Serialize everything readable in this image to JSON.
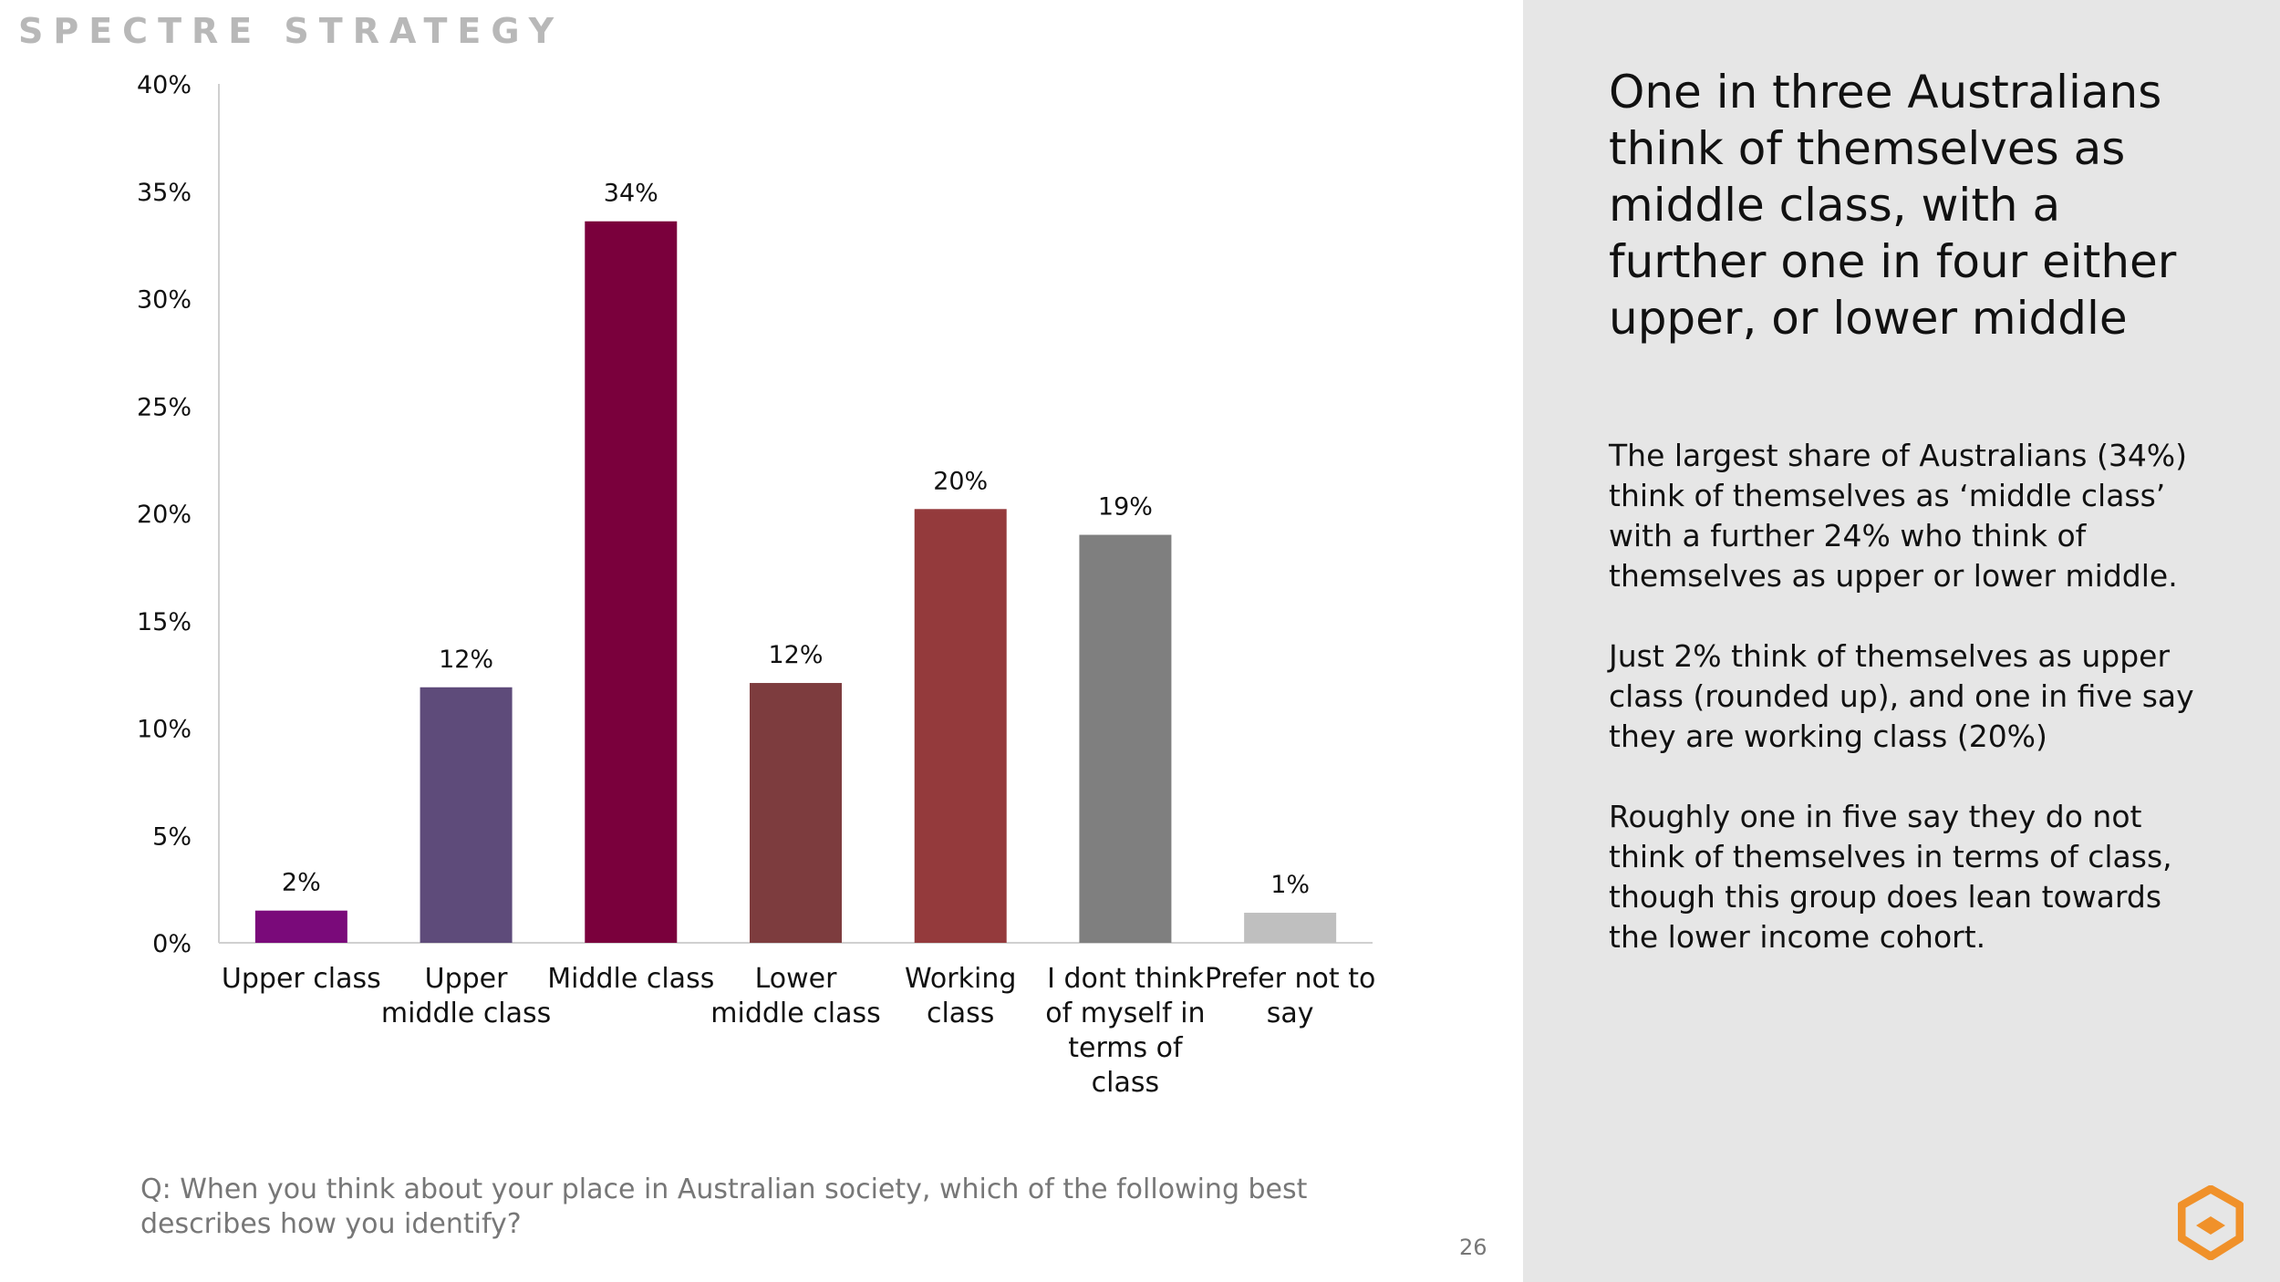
{
  "brand": "SPECTRE STRATEGY",
  "headline": "One in three Australians think of themselves as middle class, with a further one in four either upper, or lower middle",
  "body": [
    "The largest share of Australians (34%) think of themselves as ‘middle class’ with a further 24% who think of themselves as upper or lower middle.",
    "Just 2% think of themselves as upper class (rounded up), and one in five say they are working class (20%)",
    "Roughly one in five say they do not think of themselves in terms of class, though this group does lean towards the lower income cohort."
  ],
  "question": "Q: When you think about your place in Australian society, which of the following best describes how you identify?",
  "page_number": "26",
  "chart_data": {
    "type": "bar",
    "categories": [
      [
        "Upper class"
      ],
      [
        "Upper",
        "middle class"
      ],
      [
        "Middle class"
      ],
      [
        "Lower",
        "middle class"
      ],
      [
        "Working",
        "class"
      ],
      [
        "I dont think",
        "of myself in",
        "terms of",
        "class"
      ],
      [
        "Prefer not to",
        "say"
      ]
    ],
    "values": [
      1.5,
      11.9,
      33.6,
      12.1,
      20.2,
      19.0,
      1.4
    ],
    "data_labels": [
      "2%",
      "12%",
      "34%",
      "12%",
      "20%",
      "19%",
      "1%"
    ],
    "colors": [
      "#7a0a7a",
      "#5e4b7a",
      "#7a003c",
      "#7d3c3e",
      "#943a3c",
      "#7f7f7f",
      "#bfbfbf"
    ],
    "ylim": [
      0,
      40
    ],
    "yticks": [
      0,
      5,
      10,
      15,
      20,
      25,
      30,
      35,
      40
    ],
    "ytick_labels": [
      "0%",
      "5%",
      "10%",
      "15%",
      "20%",
      "25%",
      "30%",
      "35%",
      "40%"
    ],
    "title": "",
    "xlabel": "",
    "ylabel": "",
    "grid": false,
    "legend": "none"
  }
}
